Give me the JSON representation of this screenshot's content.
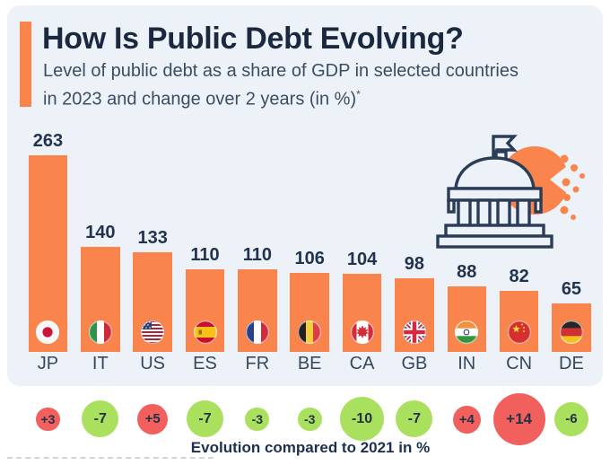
{
  "header": {
    "title": "How Is Public Debt Evolving?",
    "subtitle_line1": "Level of public debt as a share of GDP in selected countries",
    "subtitle_line2": "in 2023 and change over 2 years (in %)",
    "footnote_marker": "*"
  },
  "chart_data": {
    "type": "bar",
    "title": "How Is Public Debt Evolving?",
    "subtitle": "Level of public debt as a share of GDP in selected countries in 2023 and change over 2 years (in %)*",
    "categories": [
      "JP",
      "IT",
      "US",
      "ES",
      "FR",
      "BE",
      "CA",
      "GB",
      "IN",
      "CN",
      "DE"
    ],
    "values": [
      263,
      140,
      133,
      110,
      110,
      106,
      104,
      98,
      88,
      82,
      65
    ],
    "ylim": [
      0,
      280
    ],
    "grid": false,
    "value_labels_shown": true,
    "bar_color": "#f9854d",
    "flags": [
      "japan-flag",
      "italy-flag",
      "united-states-flag",
      "spain-flag",
      "france-flag",
      "belgium-flag",
      "canada-flag",
      "united-kingdom-flag",
      "india-flag",
      "china-flag",
      "germany-flag"
    ],
    "evolution": {
      "caption": "Evolution compared to 2021 in %",
      "values": [
        3,
        -7,
        5,
        -7,
        -3,
        -3,
        -10,
        -7,
        4,
        14,
        -6
      ],
      "labels": [
        "+3",
        "-7",
        "+5",
        "-7",
        "-3",
        "-3",
        "-10",
        "-7",
        "+4",
        "+14",
        "-6"
      ],
      "increase_color": "#f2605e",
      "decrease_color": "#a9e05e"
    }
  },
  "colors": {
    "background": "#ffffff",
    "panel": "#edf2f8",
    "accent_orange": "#f9854d",
    "title_navy": "#1b2940",
    "subtitle_gray_blue": "#3b4d63",
    "value_label_navy": "#22334f",
    "bubble_text_navy": "#243247"
  },
  "decoration": {
    "building_icon": "government-building-icon"
  }
}
